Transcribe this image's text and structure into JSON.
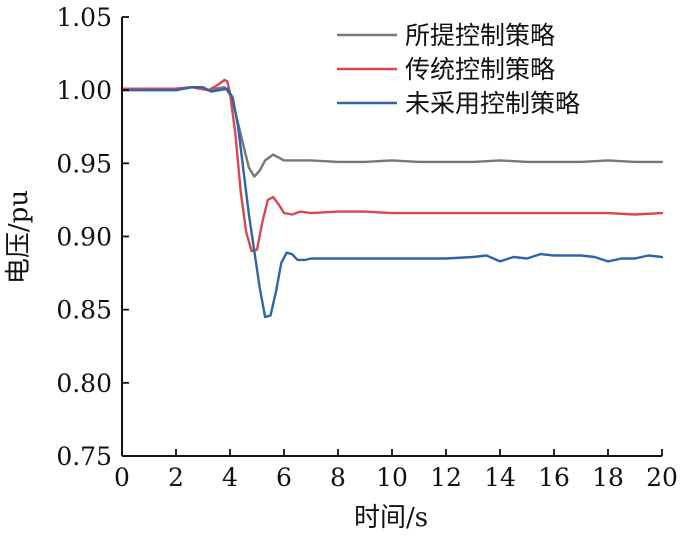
{
  "chart_data": {
    "type": "line",
    "title": "",
    "xlabel": "时间/s",
    "ylabel": "电压/pu",
    "xlim": [
      0,
      20
    ],
    "ylim": [
      0.75,
      1.05
    ],
    "xticks": [
      0,
      2,
      4,
      6,
      8,
      10,
      12,
      14,
      16,
      18,
      20
    ],
    "yticks": [
      0.75,
      0.8,
      0.85,
      0.9,
      0.95,
      1.0,
      1.05
    ],
    "xtick_labels": [
      "0",
      "2",
      "4",
      "6",
      "8",
      "10",
      "12",
      "14",
      "16",
      "18",
      "20"
    ],
    "ytick_labels": [
      "0.75",
      "0.80",
      "0.85",
      "0.90",
      "0.95",
      "1.00",
      "1.05"
    ],
    "grid": false,
    "legend_position": "top-right",
    "series": [
      {
        "name": "所提控制策略",
        "color": "#777777",
        "x": [
          0,
          1,
          2,
          2.6,
          3.2,
          3.5,
          3.8,
          4.0,
          4.2,
          4.5,
          4.7,
          4.9,
          5.1,
          5.3,
          5.6,
          6.0,
          6.5,
          7,
          8,
          9,
          10,
          11,
          12,
          13,
          14,
          15,
          16,
          17,
          18,
          19,
          20
        ],
        "y": [
          1.001,
          1.001,
          1.001,
          1.002,
          1.0,
          1.001,
          1.002,
          0.997,
          0.985,
          0.962,
          0.947,
          0.941,
          0.945,
          0.952,
          0.956,
          0.952,
          0.952,
          0.952,
          0.951,
          0.951,
          0.952,
          0.951,
          0.951,
          0.951,
          0.952,
          0.951,
          0.951,
          0.951,
          0.952,
          0.951,
          0.951
        ]
      },
      {
        "name": "传统控制策略",
        "color": "#d9474f",
        "x": [
          0,
          1,
          2,
          2.6,
          3.2,
          3.5,
          3.8,
          3.9,
          4.0,
          4.2,
          4.4,
          4.6,
          4.8,
          5.0,
          5.2,
          5.4,
          5.6,
          5.8,
          6.0,
          6.3,
          6.6,
          7,
          8,
          9,
          10,
          11,
          12,
          13,
          14,
          15,
          16,
          17,
          18,
          19,
          20
        ],
        "y": [
          1.001,
          1.001,
          1.001,
          1.002,
          1.0,
          1.003,
          1.007,
          1.006,
          0.998,
          0.97,
          0.93,
          0.903,
          0.89,
          0.891,
          0.91,
          0.925,
          0.927,
          0.922,
          0.916,
          0.915,
          0.917,
          0.916,
          0.917,
          0.917,
          0.916,
          0.916,
          0.916,
          0.916,
          0.916,
          0.916,
          0.916,
          0.916,
          0.916,
          0.915,
          0.916
        ]
      },
      {
        "name": "未采用控制策略",
        "color": "#2f65a8",
        "x": [
          0,
          1,
          2,
          2.6,
          3.0,
          3.3,
          3.6,
          3.9,
          4.1,
          4.3,
          4.5,
          4.7,
          4.9,
          5.1,
          5.3,
          5.5,
          5.7,
          5.9,
          6.1,
          6.3,
          6.5,
          6.8,
          7,
          8,
          9,
          10,
          11,
          12,
          13,
          13.5,
          14,
          14.5,
          15,
          15.5,
          16,
          17,
          17.5,
          18,
          18.5,
          19,
          19.5,
          20
        ],
        "y": [
          1.0,
          1.0,
          1.0,
          1.002,
          1.002,
          0.999,
          1.0,
          1.001,
          0.995,
          0.975,
          0.945,
          0.915,
          0.89,
          0.865,
          0.845,
          0.846,
          0.862,
          0.882,
          0.889,
          0.888,
          0.884,
          0.884,
          0.885,
          0.885,
          0.885,
          0.885,
          0.885,
          0.885,
          0.886,
          0.887,
          0.883,
          0.886,
          0.885,
          0.888,
          0.887,
          0.887,
          0.886,
          0.883,
          0.885,
          0.885,
          0.887,
          0.886
        ]
      }
    ]
  }
}
